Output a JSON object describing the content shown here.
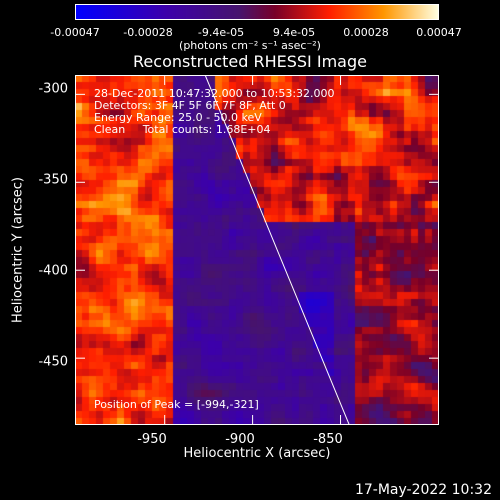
{
  "colorbar": {
    "ticks": [
      "-0.00047",
      "-0.00028",
      "-9.4e-05",
      "9.4e-05",
      "0.00028",
      "0.00047"
    ],
    "units": "(photons cm⁻² s⁻¹ asec⁻²)"
  },
  "title": "Reconstructed RHESSI Image",
  "info": {
    "line1": "28-Dec-2011 10:47:32.000 to 10:53:32.000",
    "line2": "Detectors: 3F 4F 5F 6F 7F 8F, Att 0",
    "line3": "Energy Range: 25.0 - 50.0 keV",
    "line4": "Clean     Total counts: 1.68E+04",
    "peak": "Position of Peak = [-994,-321]"
  },
  "timestamp": "17-May-2022 10:32",
  "chart_data": {
    "type": "heatmap",
    "title": "Reconstructed RHESSI Image",
    "xlabel": "Heliocentric X (arcsec)",
    "ylabel": "Heliocentric Y (arcsec)",
    "xlim": [
      -1001,
      -794
    ],
    "ylim": [
      -488,
      -289
    ],
    "xticks": [
      -950,
      -900,
      -850
    ],
    "yticks": [
      -300,
      -350,
      -400,
      -450
    ],
    "xtick_labels": [
      "-950",
      "-900",
      "-850"
    ],
    "ytick_labels": [
      "-300",
      "-350",
      "-400",
      "-450"
    ],
    "colorbar_range": [
      -0.00047,
      0.00047
    ],
    "peak_position": [
      -994,
      -321
    ],
    "limb_line": [
      [
        -927,
        -289
      ],
      [
        -845,
        -488
      ]
    ],
    "colors": {
      "min": "#0000ff",
      "mid": "#4b0082",
      "high": "#ff2a00",
      "max": "#ffffe0"
    }
  }
}
